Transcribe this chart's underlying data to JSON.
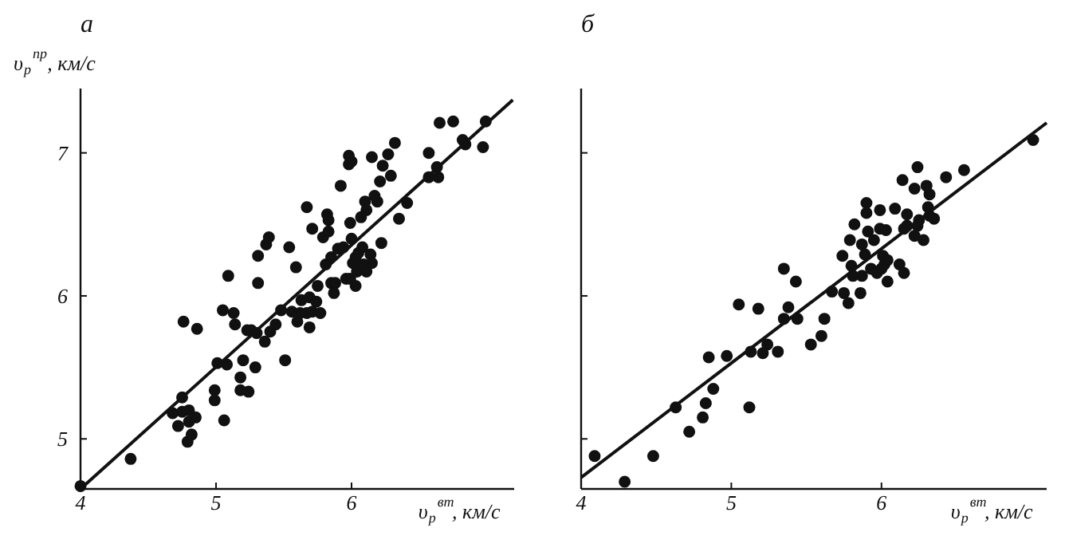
{
  "chart_data": [
    {
      "type": "scatter",
      "title": "а",
      "xlabel": "υ$_{p}$$^{вт}$, км/с",
      "ylabel": "υ$_{p}$$^{пр}$, км/с",
      "xlim": [
        4,
        7.2
      ],
      "ylim": [
        4.65,
        7.45
      ],
      "xticks": [
        4,
        5,
        6
      ],
      "yticks": [
        5,
        6,
        7
      ],
      "grid": false,
      "marker": "circle",
      "series": [
        {
          "color": "#111111",
          "x": [
            4.0,
            4.37,
            4.68,
            4.72,
            4.75,
            4.75,
            4.76,
            4.8,
            4.8,
            4.79,
            4.82,
            4.85,
            4.86,
            4.99,
            4.99,
            5.01,
            5.05,
            5.06,
            5.08,
            5.09,
            5.13,
            5.14,
            5.18,
            5.18,
            5.2,
            5.23,
            5.24,
            5.26,
            5.29,
            5.3,
            5.31,
            5.31,
            5.36,
            5.37,
            5.39,
            5.4,
            5.44,
            5.48,
            5.51,
            5.54,
            5.56,
            5.59,
            5.6,
            5.62,
            5.63,
            5.67,
            5.67,
            5.69,
            5.69,
            5.71,
            5.71,
            5.74,
            5.75,
            5.77,
            5.79,
            5.81,
            5.82,
            5.83,
            5.83,
            5.85,
            5.85,
            5.87,
            5.88,
            5.9,
            5.92,
            5.94,
            5.96,
            5.98,
            5.98,
            5.99,
            5.99,
            6.0,
            6.0,
            6.01,
            6.03,
            6.03,
            6.04,
            6.05,
            6.07,
            6.08,
            6.09,
            6.1,
            6.11,
            6.11,
            6.14,
            6.15,
            6.15,
            6.17,
            6.19,
            6.21,
            6.22,
            6.23,
            6.27,
            6.29,
            6.32,
            6.35,
            6.41,
            6.57,
            6.57,
            6.63,
            6.64,
            6.65,
            6.75,
            6.82,
            6.84,
            6.97,
            6.99
          ],
          "values": [
            4.67,
            4.86,
            5.18,
            5.09,
            5.29,
            5.19,
            5.82,
            5.2,
            5.12,
            4.98,
            5.03,
            5.15,
            5.77,
            5.34,
            5.27,
            5.53,
            5.9,
            5.13,
            5.52,
            6.14,
            5.88,
            5.8,
            5.43,
            5.34,
            5.55,
            5.76,
            5.33,
            5.76,
            5.5,
            5.74,
            6.09,
            6.28,
            5.68,
            6.36,
            6.41,
            5.75,
            5.8,
            5.9,
            5.55,
            6.34,
            5.89,
            6.2,
            5.82,
            5.88,
            5.97,
            5.88,
            6.62,
            5.78,
            5.99,
            5.89,
            6.47,
            5.96,
            6.07,
            5.88,
            6.41,
            6.22,
            6.57,
            6.53,
            6.45,
            6.09,
            6.27,
            6.02,
            6.09,
            6.33,
            6.77,
            6.34,
            6.12,
            6.92,
            6.98,
            6.51,
            6.12,
            6.94,
            6.4,
            6.23,
            6.27,
            6.07,
            6.17,
            6.3,
            6.55,
            6.34,
            6.22,
            6.66,
            6.17,
            6.6,
            6.29,
            6.97,
            6.23,
            6.7,
            6.66,
            6.8,
            6.37,
            6.91,
            6.99,
            6.84,
            7.07,
            6.54,
            6.65,
            7.0,
            6.83,
            6.9,
            6.83,
            7.21,
            7.22,
            7.09,
            7.06,
            7.04,
            7.22
          ]
        },
        {
          "type": "line",
          "marker": "none",
          "color": "#111111",
          "x": [
            4,
            7.19
          ],
          "values": [
            4.65,
            7.37
          ]
        }
      ]
    },
    {
      "type": "scatter",
      "title": "б",
      "xlabel": "υ$_{p}$$^{вт}$, км/с",
      "xlim": [
        4,
        7.1
      ],
      "ylim": [
        4.65,
        7.45
      ],
      "xticks": [
        4,
        5,
        6
      ],
      "yticks": [
        {
          "value": 5,
          "label": null
        },
        {
          "value": 6,
          "label": null
        },
        {
          "value": 7,
          "label": null
        }
      ],
      "tick_labels": "x",
      "grid": false,
      "marker": "circle",
      "series": [
        {
          "color": "#111111",
          "x": [
            4.09,
            4.29,
            4.48,
            4.63,
            4.72,
            4.81,
            4.83,
            4.85,
            4.88,
            4.97,
            5.05,
            5.12,
            5.13,
            5.18,
            5.21,
            5.24,
            5.31,
            5.35,
            5.35,
            5.38,
            5.43,
            5.44,
            5.53,
            5.6,
            5.62,
            5.67,
            5.74,
            5.75,
            5.78,
            5.79,
            5.8,
            5.81,
            5.82,
            5.86,
            5.87,
            5.87,
            5.89,
            5.9,
            5.9,
            5.91,
            5.93,
            5.95,
            5.97,
            5.99,
            5.99,
            6.0,
            6.01,
            6.02,
            6.03,
            6.04,
            6.04,
            6.09,
            6.12,
            6.14,
            6.15,
            6.15,
            6.17,
            6.17,
            6.22,
            6.22,
            6.24,
            6.24,
            6.25,
            6.28,
            6.3,
            6.31,
            6.32,
            6.32,
            6.35,
            6.43,
            6.55,
            7.01
          ],
          "values": [
            4.88,
            4.7,
            4.88,
            5.22,
            5.05,
            5.15,
            5.25,
            5.57,
            5.35,
            5.58,
            5.94,
            5.22,
            5.61,
            5.91,
            5.6,
            5.66,
            5.61,
            6.19,
            5.84,
            5.92,
            6.1,
            5.84,
            5.66,
            5.72,
            5.84,
            6.03,
            6.28,
            6.02,
            5.95,
            6.39,
            6.21,
            6.14,
            6.5,
            6.02,
            6.14,
            6.36,
            6.29,
            6.65,
            6.58,
            6.45,
            6.19,
            6.39,
            6.16,
            6.47,
            6.6,
            6.19,
            6.28,
            6.22,
            6.46,
            6.25,
            6.1,
            6.61,
            6.22,
            6.81,
            6.16,
            6.47,
            6.57,
            6.49,
            6.75,
            6.42,
            6.9,
            6.49,
            6.53,
            6.39,
            6.77,
            6.62,
            6.71,
            6.56,
            6.54,
            6.83,
            6.88,
            7.09
          ]
        },
        {
          "type": "line",
          "marker": "none",
          "color": "#111111",
          "x": [
            4,
            7.1
          ],
          "values": [
            4.73,
            7.21
          ]
        }
      ]
    }
  ]
}
